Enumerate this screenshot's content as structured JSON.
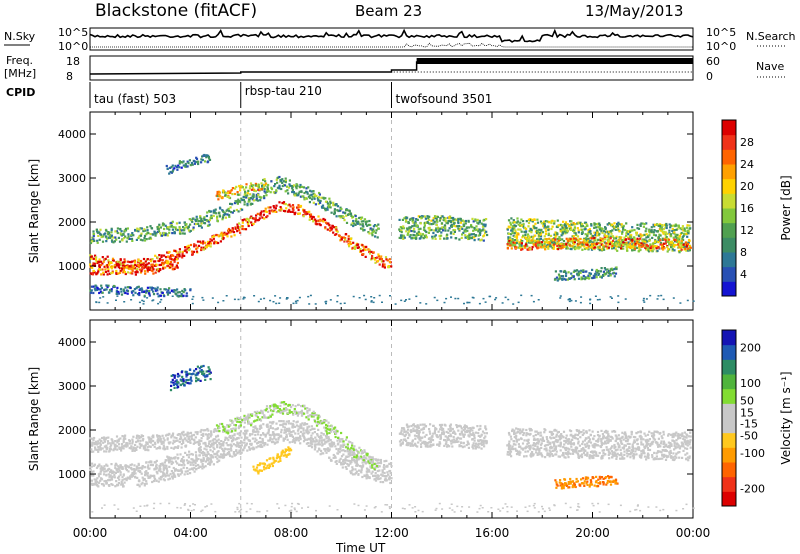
{
  "header": {
    "station": "Blackstone (fitACF)",
    "beam": "Beam 23",
    "date": "13/May/2013"
  },
  "top_labels": {
    "nsky": "N.Sky",
    "nsearch": "N.Search",
    "freq": "Freq.",
    "mhz": "[MHz]",
    "nave": "Nave",
    "cpid": "CPID",
    "noise_hi": "10^5",
    "noise_lo": "10^0",
    "freq_hi": "18",
    "freq_lo": "8",
    "nave_hi": "60",
    "nave_lo": "0"
  },
  "cpid_segments": [
    {
      "label": "tau (fast) 503",
      "start_h": 0
    },
    {
      "label": "rbsp-tau 210",
      "start_h": 6
    },
    {
      "label": "twofsound 3501",
      "start_h": 12
    }
  ],
  "xaxis": {
    "label": "Time UT",
    "ticks": [
      "00:00",
      "04:00",
      "08:00",
      "12:00",
      "16:00",
      "20:00",
      "00:00"
    ],
    "range_h": [
      0,
      24
    ]
  },
  "chart_data": [
    {
      "type": "heatmap",
      "name": "power",
      "ylabel": "Slant Range [km]",
      "yticks": [
        "1000",
        "2000",
        "3000",
        "4000"
      ],
      "ylim": [
        0,
        4500
      ],
      "colorbar": {
        "label": "Power [dB]",
        "ticks": [
          "4",
          "8",
          "12",
          "16",
          "20",
          "24",
          "28"
        ],
        "range": [
          0,
          32
        ],
        "colors": [
          "#1414d2",
          "#2850b4",
          "#2d7896",
          "#3c8c64",
          "#50a050",
          "#82c83c",
          "#c8dc32",
          "#ffd200",
          "#ffa000",
          "#ff6400",
          "#f03219",
          "#dc0000"
        ]
      },
      "bands": [
        {
          "t": [
            [
              0,
              1150
            ],
            [
              2,
              1050
            ],
            [
              4,
              1400
            ],
            [
              5.5,
              1750
            ],
            [
              6.5,
              2100
            ],
            [
              7.5,
              2400
            ],
            [
              8.5,
              2250
            ],
            [
              9.5,
              1900
            ],
            [
              10.5,
              1500
            ],
            [
              11.5,
              1150
            ],
            [
              12,
              1050
            ]
          ],
          "w": 120,
          "level": 27
        },
        {
          "t": [
            [
              0,
              1700
            ],
            [
              2,
              1750
            ],
            [
              4,
              1950
            ],
            [
              5.5,
              2300
            ],
            [
              6.5,
              2600
            ],
            [
              7.5,
              2900
            ],
            [
              8.5,
              2700
            ],
            [
              9.5,
              2400
            ],
            [
              10.5,
              2050
            ],
            [
              11.5,
              1800
            ]
          ],
          "w": 160,
          "level": 11
        },
        {
          "t": [
            [
              0,
              950
            ],
            [
              1.5,
              950
            ],
            [
              2.5,
              950
            ],
            [
              3.5,
              1100
            ]
          ],
          "w": 120,
          "level": 28
        },
        {
          "t": [
            [
              3,
              3200
            ],
            [
              4,
              3400
            ],
            [
              4.8,
              3500
            ]
          ],
          "w": 100,
          "level": 8
        },
        {
          "t": [
            [
              5,
              2600
            ],
            [
              6,
              2750
            ],
            [
              7,
              2900
            ]
          ],
          "w": 110,
          "level": 19
        },
        {
          "t": [
            [
              12.3,
              1900
            ],
            [
              14,
              1900
            ],
            [
              15.8,
              1850
            ]
          ],
          "w": 260,
          "level": 12
        },
        {
          "t": [
            [
              16.6,
              1800
            ],
            [
              20,
              1700
            ],
            [
              23.9,
              1650
            ]
          ],
          "w": 320,
          "level": 14
        },
        {
          "t": [
            [
              16.6,
              1500
            ],
            [
              20,
              1550
            ],
            [
              23.9,
              1500
            ]
          ],
          "w": 120,
          "level": 22
        },
        {
          "t": [
            [
              18.5,
              800
            ],
            [
              20,
              850
            ],
            [
              21,
              900
            ]
          ],
          "w": 110,
          "level": 9
        },
        {
          "t": [
            [
              0,
              500
            ],
            [
              2,
              450
            ],
            [
              4,
              400
            ]
          ],
          "w": 100,
          "level": 6
        }
      ]
    },
    {
      "type": "heatmap",
      "name": "velocity",
      "ylabel": "Slant Range [km]",
      "yticks": [
        "1000",
        "2000",
        "3000",
        "4000"
      ],
      "ylim": [
        0,
        4500
      ],
      "colorbar": {
        "label": "Velocity [m s⁻¹]",
        "ticks": [
          "-200",
          "-100",
          "-50",
          "-15",
          "15",
          "50",
          "100",
          "200"
        ],
        "range": [
          -250,
          250
        ],
        "colors": [
          "#dc0000",
          "#f03219",
          "#ff6400",
          "#ff9b00",
          "#ffc81e",
          "#c8c8c8",
          "#c8c8c8",
          "#82dc32",
          "#50b43c",
          "#2d8c64",
          "#1e5ab4",
          "#1414b4"
        ]
      },
      "bands": [
        {
          "t": [
            [
              0,
              1000
            ],
            [
              2,
              1000
            ],
            [
              4,
              1300
            ],
            [
              5.5,
              1650
            ],
            [
              6.5,
              1850
            ],
            [
              7.5,
              2000
            ],
            [
              8.5,
              1950
            ],
            [
              9.5,
              1600
            ],
            [
              10.5,
              1250
            ],
            [
              11.5,
              1100
            ],
            [
              12,
              1050
            ]
          ],
          "w": 260,
          "level": 0
        },
        {
          "t": [
            [
              5,
              2000
            ],
            [
              6.5,
              2300
            ],
            [
              7.5,
              2550
            ],
            [
              8.5,
              2450
            ],
            [
              9.5,
              2050
            ],
            [
              10.5,
              1550
            ],
            [
              11.5,
              1200
            ]
          ],
          "w": 140,
          "level": 40
        },
        {
          "t": [
            [
              3.2,
              3100
            ],
            [
              4,
              3250
            ],
            [
              4.8,
              3350
            ]
          ],
          "w": 180,
          "level": 180
        },
        {
          "t": [
            [
              0,
              1700
            ],
            [
              3,
              1750
            ],
            [
              5,
              1900
            ]
          ],
          "w": 180,
          "level": 0
        },
        {
          "t": [
            [
              12.3,
              1900
            ],
            [
              14,
              1900
            ],
            [
              15.8,
              1850
            ]
          ],
          "w": 260,
          "level": 0
        },
        {
          "t": [
            [
              16.6,
              1750
            ],
            [
              20,
              1700
            ],
            [
              23.9,
              1650
            ]
          ],
          "w": 320,
          "level": 0
        },
        {
          "t": [
            [
              18.5,
              800
            ],
            [
              20,
              850
            ],
            [
              21,
              900
            ]
          ],
          "w": 110,
          "level": -120
        },
        {
          "t": [
            [
              6.5,
              1100
            ],
            [
              7.5,
              1400
            ],
            [
              8,
              1600
            ]
          ],
          "w": 110,
          "level": -60
        }
      ]
    }
  ]
}
